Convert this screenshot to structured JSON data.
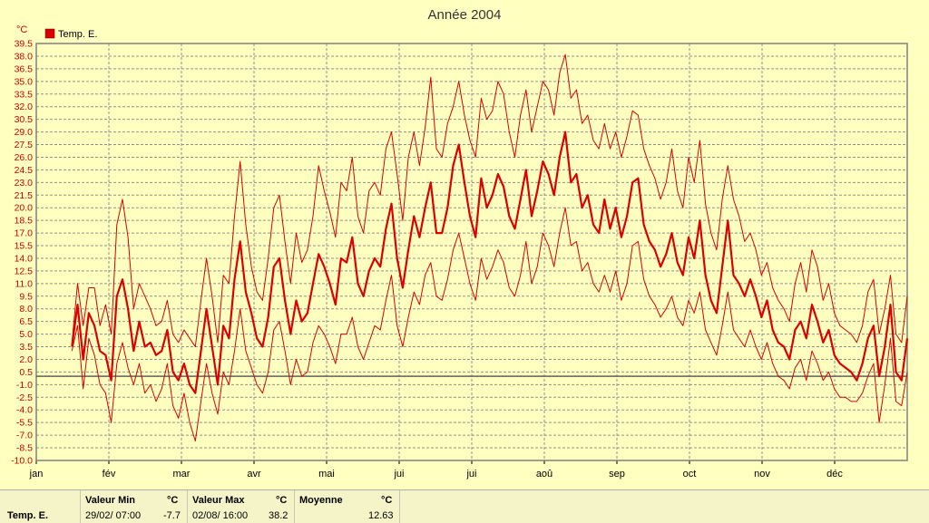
{
  "chart_data": {
    "type": "line",
    "title": "Année 2004",
    "ylabel": "°C",
    "ylim": [
      -10.0,
      39.5
    ],
    "ytick_step": 1.5,
    "grid": true,
    "legend_position": "top-left",
    "legend": [
      {
        "name": "Temp. E.",
        "color": "#dd0000"
      }
    ],
    "xlabels": [
      "jan",
      "fév",
      "mar",
      "avr",
      "mai",
      "jui",
      "jui",
      "aoû",
      "sep",
      "oct",
      "nov",
      "déc"
    ],
    "x_start_day": 15,
    "x_end_day": 366,
    "series": [
      {
        "name": "Temp. E.",
        "role": "mean",
        "color": "#dd0000",
        "values": [
          3.5,
          8.5,
          2.0,
          7.5,
          6.0,
          3.0,
          2.5,
          -0.5,
          9.5,
          11.5,
          8.0,
          3.0,
          6.5,
          3.5,
          4.0,
          2.5,
          3.0,
          5.5,
          0.5,
          -0.5,
          1.5,
          -1.0,
          -2.0,
          3.0,
          8.0,
          3.5,
          -1.0,
          6.0,
          4.5,
          11.5,
          16.0,
          10.0,
          7.5,
          4.5,
          3.5,
          7.0,
          13.0,
          14.0,
          9.0,
          5.0,
          9.0,
          6.5,
          7.5,
          11.0,
          14.5,
          13.0,
          11.0,
          8.5,
          14.0,
          13.5,
          16.5,
          11.0,
          9.5,
          12.5,
          14.0,
          13.0,
          17.5,
          20.5,
          14.0,
          10.5,
          15.0,
          19.0,
          16.5,
          20.0,
          23.0,
          17.0,
          17.0,
          20.0,
          25.0,
          27.5,
          23.0,
          19.0,
          16.5,
          23.5,
          20.0,
          21.5,
          24.0,
          22.5,
          19.0,
          17.5,
          21.0,
          24.5,
          19.0,
          22.0,
          25.5,
          24.0,
          21.5,
          26.0,
          29.0,
          23.0,
          24.0,
          20.0,
          21.5,
          18.0,
          17.0,
          21.0,
          17.5,
          20.0,
          16.5,
          19.0,
          23.0,
          23.5,
          18.0,
          16.0,
          15.0,
          13.0,
          14.5,
          17.0,
          13.5,
          12.0,
          16.5,
          14.0,
          18.5,
          12.0,
          9.0,
          7.5,
          13.0,
          18.5,
          12.0,
          11.0,
          9.5,
          11.5,
          9.5,
          7.0,
          9.0,
          5.5,
          4.0,
          3.5,
          2.0,
          5.5,
          6.5,
          4.5,
          8.5,
          6.5,
          4.0,
          5.5,
          2.5,
          1.5,
          1.0,
          0.5,
          -0.5,
          1.5,
          4.5,
          6.0,
          0.0,
          3.5,
          8.5,
          0.5,
          -0.5,
          4.5
        ]
      },
      {
        "name": "Max",
        "role": "max",
        "color": "#dd0000",
        "values": [
          4.0,
          11.0,
          6.0,
          10.5,
          10.5,
          6.0,
          8.5,
          5.0,
          18.0,
          21.0,
          16.5,
          8.0,
          11.0,
          9.5,
          8.0,
          6.0,
          6.5,
          9.0,
          5.0,
          4.0,
          5.5,
          4.5,
          3.5,
          9.0,
          14.0,
          9.5,
          4.0,
          12.0,
          11.0,
          19.0,
          25.5,
          18.0,
          13.0,
          10.0,
          9.0,
          14.0,
          20.0,
          21.5,
          16.0,
          11.0,
          17.0,
          13.5,
          15.0,
          19.0,
          25.0,
          22.0,
          19.5,
          16.5,
          23.0,
          22.0,
          26.0,
          19.0,
          17.0,
          22.0,
          23.0,
          21.5,
          27.0,
          29.0,
          24.0,
          18.5,
          26.0,
          29.0,
          25.0,
          29.5,
          35.5,
          27.0,
          26.0,
          30.0,
          32.0,
          35.0,
          31.0,
          28.0,
          26.0,
          33.0,
          30.5,
          31.5,
          35.0,
          33.5,
          29.0,
          26.0,
          31.0,
          34.0,
          29.0,
          32.0,
          35.0,
          34.0,
          31.0,
          36.0,
          38.2,
          33.0,
          34.0,
          30.0,
          31.0,
          28.0,
          27.0,
          30.0,
          27.0,
          29.0,
          26.0,
          28.5,
          31.5,
          31.0,
          27.0,
          25.0,
          23.5,
          21.0,
          23.0,
          27.0,
          22.0,
          20.0,
          26.0,
          23.0,
          28.0,
          20.5,
          17.0,
          15.0,
          21.0,
          25.0,
          21.0,
          19.0,
          16.0,
          17.0,
          15.0,
          12.0,
          13.5,
          10.5,
          9.0,
          8.0,
          6.5,
          11.0,
          13.5,
          10.0,
          15.0,
          13.0,
          9.0,
          11.0,
          7.5,
          6.0,
          5.5,
          5.0,
          4.0,
          6.0,
          10.0,
          11.5,
          5.0,
          8.0,
          12.0,
          5.0,
          4.0,
          9.5
        ]
      },
      {
        "name": "Min",
        "role": "min",
        "color": "#dd0000",
        "values": [
          3.0,
          6.0,
          -1.5,
          4.5,
          2.5,
          -1.0,
          -2.0,
          -5.5,
          1.5,
          4.0,
          1.0,
          -1.0,
          1.5,
          -2.0,
          -1.0,
          -3.0,
          -1.5,
          1.5,
          -3.5,
          -5.0,
          -2.0,
          -5.5,
          -7.7,
          -3.0,
          1.5,
          -2.0,
          -4.5,
          0.5,
          -1.0,
          3.0,
          8.0,
          3.0,
          1.0,
          -1.0,
          -2.0,
          0.5,
          5.5,
          6.5,
          3.0,
          -1.0,
          2.0,
          0.0,
          0.5,
          4.0,
          6.0,
          5.0,
          3.5,
          1.5,
          5.0,
          5.0,
          7.0,
          3.5,
          2.0,
          4.0,
          6.0,
          5.5,
          9.0,
          12.0,
          6.0,
          3.5,
          7.0,
          10.0,
          8.5,
          12.0,
          13.5,
          9.5,
          9.0,
          11.5,
          15.0,
          17.0,
          14.0,
          11.0,
          9.0,
          14.0,
          11.5,
          13.0,
          15.0,
          13.5,
          10.5,
          9.5,
          12.0,
          16.0,
          11.0,
          13.0,
          17.0,
          15.5,
          13.0,
          17.0,
          20.0,
          15.5,
          16.0,
          12.5,
          13.5,
          11.0,
          10.0,
          12.0,
          10.0,
          12.5,
          9.0,
          11.0,
          15.5,
          16.0,
          11.5,
          9.5,
          8.5,
          7.0,
          8.0,
          9.5,
          7.0,
          6.0,
          9.0,
          7.5,
          10.0,
          5.5,
          4.0,
          2.5,
          6.0,
          10.0,
          5.5,
          4.5,
          3.5,
          5.5,
          3.5,
          2.0,
          4.0,
          1.5,
          0.0,
          -0.5,
          -1.5,
          1.0,
          2.0,
          -0.5,
          3.0,
          1.5,
          -0.5,
          0.5,
          -1.5,
          -2.5,
          -2.5,
          -3.0,
          -3.0,
          -2.0,
          0.0,
          1.5,
          -5.5,
          -1.0,
          4.5,
          -3.0,
          -3.5,
          0.5
        ]
      }
    ],
    "reference_line": 0.0
  },
  "stats": {
    "row_label": "Temp. E.",
    "min": {
      "label": "Valeur Min",
      "unit": "°C",
      "date": "29/02/  07:00",
      "value": "-7.7"
    },
    "max": {
      "label": "Valeur Max",
      "unit": "°C",
      "date": "02/08/  16:00",
      "value": "38.2"
    },
    "mean": {
      "label": "Moyenne",
      "unit": "°C",
      "value": "12.63"
    }
  }
}
